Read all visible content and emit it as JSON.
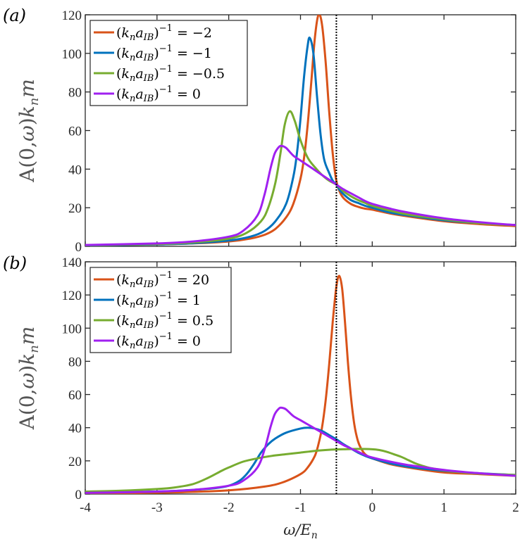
{
  "chart_data": [
    {
      "type": "line",
      "panel_label": "(a)",
      "xlabel": "",
      "ylabel": "A(0,ω)k_n m",
      "xlim": [
        -4,
        2
      ],
      "ylim": [
        0,
        120
      ],
      "yticks": [
        0,
        20,
        40,
        60,
        80,
        100,
        120
      ],
      "xticks": [
        -4,
        -3,
        -2,
        -1,
        0,
        1,
        2
      ],
      "show_xticklabels": false,
      "vline_x": -0.5,
      "legend_position": "top-left",
      "series": [
        {
          "name": "(k_n a_IB)^-1 = -2",
          "color": "#D95319",
          "x": [
            -4,
            -3,
            -2.5,
            -2,
            -1.7,
            -1.5,
            -1.35,
            -1.2,
            -1.1,
            -1.0,
            -0.95,
            -0.9,
            -0.85,
            -0.8,
            -0.75,
            -0.7,
            -0.65,
            -0.6,
            -0.55,
            -0.5,
            -0.45,
            -0.4,
            -0.3,
            -0.2,
            -0.1,
            0,
            0.25,
            0.5,
            1,
            1.5,
            2
          ],
          "y": [
            0.5,
            1,
            1.5,
            2.5,
            4,
            6,
            9,
            15,
            22,
            35,
            46,
            63,
            85,
            108,
            120,
            115,
            96,
            70,
            48,
            34,
            28,
            25,
            22,
            20.5,
            19.5,
            19,
            17,
            15.5,
            13,
            11.5,
            10.5
          ]
        },
        {
          "name": "(k_n a_IB)^-1 = -1",
          "color": "#0072BD",
          "x": [
            -4,
            -3,
            -2.5,
            -2,
            -1.7,
            -1.5,
            -1.35,
            -1.2,
            -1.1,
            -1.05,
            -1.0,
            -0.95,
            -0.9,
            -0.87,
            -0.82,
            -0.77,
            -0.72,
            -0.67,
            -0.6,
            -0.55,
            -0.5,
            -0.45,
            -0.4,
            -0.3,
            -0.2,
            -0.1,
            0,
            0.25,
            0.5,
            1,
            1.5,
            2
          ],
          "y": [
            0.5,
            1,
            1.6,
            3,
            5,
            8,
            13,
            22,
            36,
            48,
            66,
            88,
            104,
            108,
            100,
            78,
            58,
            45,
            38,
            34,
            32,
            29,
            27,
            24,
            22.5,
            21,
            20,
            17.5,
            16,
            13.5,
            12,
            11
          ]
        },
        {
          "name": "(k_n a_IB)^-1 = -0.5",
          "color": "#77AC30",
          "x": [
            -4,
            -3,
            -2.5,
            -2,
            -1.75,
            -1.55,
            -1.45,
            -1.35,
            -1.28,
            -1.22,
            -1.15,
            -1.08,
            -1.0,
            -0.9,
            -0.8,
            -0.7,
            -0.6,
            -0.5,
            -0.4,
            -0.3,
            -0.2,
            -0.1,
            0,
            0.25,
            0.5,
            1,
            1.5,
            2
          ],
          "y": [
            0.6,
            1.2,
            2,
            4,
            7,
            13,
            20,
            33,
            48,
            63,
            70,
            65,
            55,
            46,
            41,
            37,
            34,
            32,
            28.5,
            26,
            24,
            22.5,
            21,
            18.5,
            16.5,
            14,
            12,
            11
          ]
        },
        {
          "name": "(k_n a_IB)^-1 = 0",
          "color": "#A020F0",
          "x": [
            -4,
            -3,
            -2.5,
            -2,
            -1.8,
            -1.6,
            -1.5,
            -1.42,
            -1.36,
            -1.3,
            -1.26,
            -1.2,
            -1.1,
            -1.0,
            -0.9,
            -0.8,
            -0.7,
            -0.6,
            -0.5,
            -0.4,
            -0.3,
            -0.2,
            -0.1,
            0,
            0.25,
            0.5,
            1,
            1.5,
            2
          ],
          "y": [
            0.7,
            1.5,
            2.5,
            5,
            8,
            16,
            27,
            40,
            48,
            51.5,
            52,
            51,
            47,
            44.5,
            42,
            39.5,
            37,
            34.5,
            32,
            29.5,
            27.5,
            25.5,
            23.5,
            22,
            19.5,
            17.5,
            14.5,
            12.5,
            11
          ]
        }
      ],
      "legend": [
        "(k_n a_IB)^-1 = -2",
        "(k_n a_IB)^-1 = -1",
        "(k_n a_IB)^-1 = -0.5",
        "(k_n a_IB)^-1 = 0"
      ]
    },
    {
      "type": "line",
      "panel_label": "(b)",
      "xlabel": "ω/E_n",
      "ylabel": "A(0,ω)k_n m",
      "xlim": [
        -4,
        2
      ],
      "ylim": [
        0,
        140
      ],
      "yticks": [
        0,
        20,
        40,
        60,
        80,
        100,
        120,
        140
      ],
      "xticks": [
        -4,
        -3,
        -2,
        -1,
        0,
        1,
        2
      ],
      "show_xticklabels": true,
      "vline_x": -0.5,
      "legend_position": "top-left",
      "series": [
        {
          "name": "(k_n a_IB)^-1 = 20",
          "color": "#D95319",
          "x": [
            -4,
            -3,
            -2.5,
            -2,
            -1.5,
            -1.25,
            -1.0,
            -0.9,
            -0.8,
            -0.75,
            -0.7,
            -0.65,
            -0.6,
            -0.55,
            -0.5,
            -0.46,
            -0.42,
            -0.38,
            -0.34,
            -0.3,
            -0.25,
            -0.2,
            -0.15,
            -0.1,
            -0.05,
            0,
            0.25,
            0.5,
            1,
            1.5,
            2
          ],
          "y": [
            0.3,
            0.8,
            1.3,
            2.2,
            4.5,
            7,
            12,
            16,
            23,
            30,
            40,
            56,
            78,
            104,
            125,
            131.5,
            124,
            104,
            80,
            60,
            42,
            32,
            27,
            24,
            22.5,
            21.5,
            18,
            16,
            13,
            12,
            11
          ]
        },
        {
          "name": "(k_n a_IB)^-1 = 1",
          "color": "#0072BD",
          "x": [
            -4,
            -3,
            -2.5,
            -2.2,
            -2,
            -1.85,
            -1.75,
            -1.65,
            -1.55,
            -1.45,
            -1.35,
            -1.2,
            -1.0,
            -0.9,
            -0.8,
            -0.7,
            -0.6,
            -0.5,
            -0.4,
            -0.3,
            -0.2,
            -0.1,
            0,
            0.25,
            0.5,
            1,
            1.5,
            2
          ],
          "y": [
            0.8,
            1.5,
            2.5,
            3.5,
            5,
            8,
            12,
            18,
            25,
            30,
            33.5,
            37,
            39.5,
            40,
            39.5,
            38,
            35.5,
            33,
            30,
            27.5,
            25,
            23,
            21.5,
            18.5,
            16.5,
            14,
            12.5,
            11.5
          ]
        },
        {
          "name": "(k_n a_IB)^-1 = 0.5",
          "color": "#77AC30",
          "x": [
            -4,
            -3.5,
            -3,
            -2.75,
            -2.5,
            -2.3,
            -2.1,
            -2,
            -1.8,
            -1.6,
            -1.4,
            -1.2,
            -1.0,
            -0.8,
            -0.6,
            -0.4,
            -0.2,
            0,
            0.1,
            0.2,
            0.3,
            0.4,
            0.5,
            0.6,
            0.7,
            0.8,
            1.0,
            1.2,
            1.5,
            2
          ],
          "y": [
            1.5,
            2,
            3,
            4,
            6,
            9.5,
            14,
            16,
            19.5,
            21.5,
            23,
            24,
            25,
            26,
            26.7,
            27,
            27.2,
            27,
            26.5,
            25.5,
            24,
            22.5,
            20.5,
            18.5,
            17,
            15.8,
            14.3,
            13.3,
            12.3,
            11.5
          ]
        },
        {
          "name": "(k_n a_IB)^-1 = 0",
          "color": "#A020F0",
          "x": [
            -4,
            -3,
            -2.5,
            -2,
            -1.8,
            -1.6,
            -1.5,
            -1.42,
            -1.36,
            -1.3,
            -1.26,
            -1.2,
            -1.1,
            -1.0,
            -0.9,
            -0.8,
            -0.7,
            -0.6,
            -0.5,
            -0.4,
            -0.3,
            -0.2,
            -0.1,
            0,
            0.25,
            0.5,
            1,
            1.5,
            2
          ],
          "y": [
            0.7,
            1.5,
            2.5,
            5,
            8,
            16,
            27,
            40,
            48,
            51.5,
            52,
            51,
            47,
            44.5,
            42,
            39.5,
            37,
            34.5,
            32,
            29.5,
            27.5,
            25.5,
            23.5,
            22,
            19.5,
            17.5,
            14.5,
            12.5,
            11
          ]
        }
      ],
      "legend": [
        "(k_n a_IB)^-1 = 20",
        "(k_n a_IB)^-1 = 1",
        "(k_n a_IB)^-1 = 0.5",
        "(k_n a_IB)^-1 = 0"
      ]
    }
  ]
}
